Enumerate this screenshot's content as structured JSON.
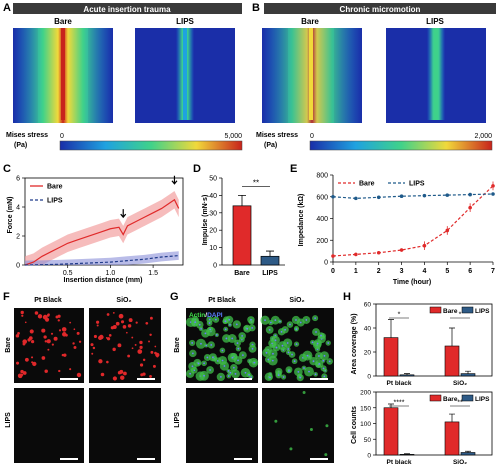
{
  "colors": {
    "bare": "#e02a2a",
    "lips": "#1f3a8a",
    "lips_bar": "#2e5a86",
    "fem_bg": "#1a2ea8",
    "header": "#3a3a3a"
  },
  "panels": {
    "A": {
      "letter": "A",
      "title": "Acute insertion trauma",
      "labels": [
        "Bare",
        "LIPS"
      ],
      "scale_label": "Mises stress\n(Pa)",
      "scale_min": "0",
      "scale_max": "5,000"
    },
    "B": {
      "letter": "B",
      "title": "Chronic micromotion",
      "labels": [
        "Bare",
        "LIPS"
      ],
      "scale_max": "2,000"
    },
    "F": {
      "letter": "F",
      "cols": [
        "Pt Black",
        "SiO₂"
      ],
      "rows": [
        "Bare",
        "LIPS"
      ]
    },
    "G": {
      "letter": "G",
      "cols": [
        "Pt Black",
        "SiO₂"
      ],
      "rows": [
        "Bare",
        "LIPS"
      ],
      "stain_actin": "Actin",
      "stain_dapi": "DAPI"
    }
  },
  "chart_data": [
    {
      "panel": "C",
      "type": "line",
      "xlabel": "Insertion distance (mm)",
      "ylabel": "Force (mN)",
      "xlim": [
        0,
        1.85
      ],
      "ylim": [
        0,
        6
      ],
      "xticks": [
        "0.5",
        "1.0",
        "1.5"
      ],
      "yticks": [
        "0",
        "2",
        "4",
        "6"
      ],
      "series": [
        {
          "name": "Bare",
          "x": [
            0,
            0.1,
            0.2,
            0.3,
            0.4,
            0.5,
            0.6,
            0.7,
            0.8,
            0.9,
            1.0,
            1.1,
            1.15,
            1.2,
            1.3,
            1.4,
            1.5,
            1.6,
            1.7,
            1.75,
            1.8
          ],
          "y": [
            0,
            0.2,
            0.6,
            0.9,
            1.2,
            1.5,
            1.7,
            1.9,
            2.1,
            2.3,
            2.5,
            2.6,
            2.1,
            2.7,
            3.0,
            3.3,
            3.6,
            3.9,
            4.3,
            4.5,
            3.9
          ]
        },
        {
          "name": "LIPS",
          "x": [
            0,
            0.2,
            0.4,
            0.6,
            0.8,
            1.0,
            1.2,
            1.4,
            1.6,
            1.8
          ],
          "y": [
            0,
            0.02,
            0.05,
            0.1,
            0.15,
            0.2,
            0.3,
            0.4,
            0.55,
            0.65
          ]
        }
      ],
      "annotations": [
        "arrow at 1.15 mm",
        "arrow at 1.75 mm"
      ],
      "legend": "top-left"
    },
    {
      "panel": "D",
      "type": "bar",
      "categories": [
        "Bare",
        "LIPS"
      ],
      "values": [
        34,
        5
      ],
      "errors": [
        6,
        3
      ],
      "ylabel": "Impulse (mN·s)",
      "ylim": [
        0,
        50
      ],
      "yticks": [
        "0",
        "10",
        "20",
        "30",
        "40",
        "50"
      ],
      "significance": "**"
    },
    {
      "panel": "E",
      "type": "line",
      "xlabel": "Time (hour)",
      "ylabel": "Impedance (kΩ)",
      "xlim": [
        0,
        7
      ],
      "ylim": [
        0,
        800
      ],
      "xticks": [
        "0",
        "1",
        "2",
        "3",
        "4",
        "5",
        "6",
        "7"
      ],
      "yticks": [
        "0",
        "200",
        "400",
        "600",
        "800"
      ],
      "series": [
        {
          "name": "Bare",
          "x": [
            0,
            1,
            2,
            3,
            4,
            5,
            6,
            7
          ],
          "y": [
            55,
            70,
            85,
            110,
            150,
            290,
            500,
            700
          ]
        },
        {
          "name": "LIPS",
          "x": [
            0,
            1,
            2,
            3,
            4,
            5,
            6,
            7
          ],
          "y": [
            600,
            585,
            595,
            605,
            610,
            615,
            620,
            625
          ]
        }
      ],
      "legend": "top"
    },
    {
      "panel": "H",
      "type": "bar",
      "ylabel": "Area coverage (%)",
      "ylim": [
        0,
        60
      ],
      "yticks": [
        "0",
        "20",
        "40",
        "60"
      ],
      "categories": [
        "Pt black",
        "SiO₂"
      ],
      "series": [
        {
          "name": "Bare",
          "values": [
            32,
            25
          ],
          "errors": [
            15,
            15
          ]
        },
        {
          "name": "LIPS",
          "values": [
            1,
            2
          ],
          "errors": [
            1,
            2
          ]
        }
      ],
      "significance": [
        "*",
        "*"
      ]
    },
    {
      "panel": "H",
      "type": "bar",
      "ylabel": "Cell counts",
      "ylim": [
        0,
        200
      ],
      "yticks": [
        "0",
        "50",
        "100",
        "150",
        "200"
      ],
      "categories": [
        "Pt black",
        "SiO₂"
      ],
      "series": [
        {
          "name": "Bare",
          "values": [
            150,
            105
          ],
          "errors": [
            12,
            25
          ]
        },
        {
          "name": "LIPS",
          "values": [
            2,
            8
          ],
          "errors": [
            2,
            4
          ]
        }
      ],
      "significance": [
        "****",
        "**"
      ]
    }
  ]
}
